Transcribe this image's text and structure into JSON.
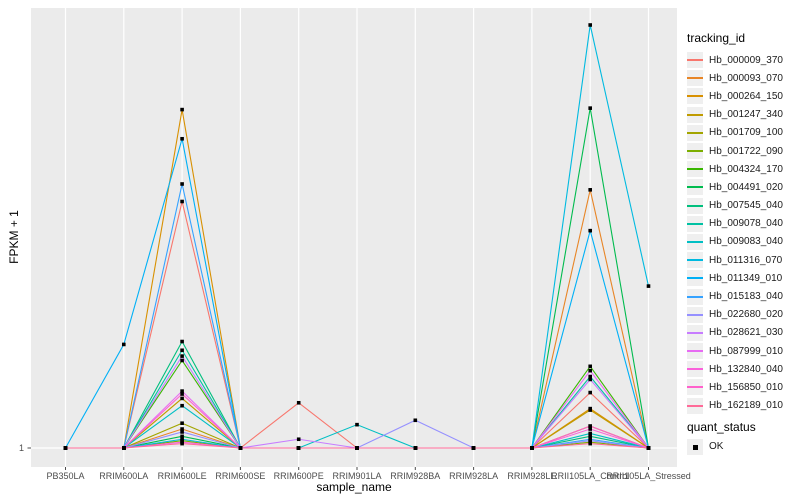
{
  "style": {
    "panel_background": "#EBEBEB",
    "gridline_color": "#FFFFFF",
    "axis_text_color": "#4D4D4D",
    "point_color": "#000000",
    "legend_key_background": "#EFEFEF"
  },
  "chart_data": {
    "type": "line",
    "title": "",
    "xlabel": "sample_name",
    "ylabel": "FPKM + 1",
    "y_tick_labels": [
      "1"
    ],
    "ylim": [
      1,
      30.5
    ],
    "grid": "vertical-white-on-gray",
    "legend": {
      "position": "right",
      "tracking_title": "tracking_id",
      "quant_title": "quant_status",
      "quant_value": "OK",
      "point_shape": "filled-square"
    },
    "x_categories": [
      "PB350LA",
      "RRIM600LA",
      "RRIM600LE",
      "RRIM600SE",
      "RRIM600PE",
      "RRIM901LA",
      "RRIM928BA",
      "RRIM928LA",
      "RRIM928LE",
      "RRII105LA_Control",
      "RRII105LA_Stressed"
    ],
    "series": [
      {
        "name": "Hb_000009_370",
        "color": "#F8766D",
        "values": [
          1,
          1,
          17.9,
          1,
          4.1,
          1,
          1,
          1,
          1,
          4.8,
          1
        ]
      },
      {
        "name": "Hb_000093_070",
        "color": "#E88526",
        "values": [
          1,
          1,
          2.3,
          1,
          1,
          1,
          1,
          1,
          1,
          18.7,
          1
        ]
      },
      {
        "name": "Hb_000264_150",
        "color": "#D89000",
        "values": [
          1,
          1,
          24.2,
          1,
          1,
          1,
          1,
          1,
          1,
          3.7,
          1
        ]
      },
      {
        "name": "Hb_001247_340",
        "color": "#C09B00",
        "values": [
          1,
          1,
          4.4,
          1,
          1,
          1,
          1,
          1,
          1,
          3.6,
          1
        ]
      },
      {
        "name": "Hb_001709_100",
        "color": "#A3A500",
        "values": [
          1,
          1,
          2.7,
          1,
          1,
          1,
          1,
          1,
          1,
          2.5,
          1
        ]
      },
      {
        "name": "Hb_001722_090",
        "color": "#7CAE00",
        "values": [
          1,
          1,
          1.5,
          1,
          1,
          1,
          1,
          1,
          1,
          1.4,
          1
        ]
      },
      {
        "name": "Hb_004324_170",
        "color": "#39B600",
        "values": [
          1,
          1,
          7.0,
          1,
          1,
          1,
          1,
          1,
          1,
          6.6,
          1
        ]
      },
      {
        "name": "Hb_004491_020",
        "color": "#00BB4E",
        "values": [
          1,
          1,
          1.8,
          1,
          1,
          1,
          1,
          1,
          1,
          24.3,
          1
        ]
      },
      {
        "name": "Hb_007545_040",
        "color": "#00BF7D",
        "values": [
          1,
          1,
          8.3,
          1,
          1,
          1,
          1,
          1,
          1,
          1.8,
          1
        ]
      },
      {
        "name": "Hb_009078_040",
        "color": "#00C1A3",
        "values": [
          1,
          1,
          7.7,
          1,
          1,
          1,
          1,
          1,
          1,
          5.9,
          1
        ]
      },
      {
        "name": "Hb_009083_040",
        "color": "#00BFC4",
        "values": [
          1,
          1,
          3.9,
          1,
          1,
          2.6,
          1,
          1,
          1,
          2.0,
          1
        ]
      },
      {
        "name": "Hb_011316_070",
        "color": "#00BAE0",
        "values": [
          1,
          1,
          1.6,
          1,
          1,
          1,
          1,
          1,
          1,
          30,
          12.1
        ]
      },
      {
        "name": "Hb_011349_010",
        "color": "#00B0F6",
        "values": [
          1,
          8.1,
          22.2,
          1,
          1,
          1,
          1,
          1,
          1,
          15.9,
          1
        ]
      },
      {
        "name": "Hb_015183_040",
        "color": "#35A2FF",
        "values": [
          1,
          1,
          19.1,
          1,
          1,
          1,
          1,
          1,
          1,
          1.6,
          1
        ]
      },
      {
        "name": "Hb_022680_020",
        "color": "#9590FF",
        "values": [
          1,
          1,
          2.1,
          1,
          1,
          1,
          2.9,
          1,
          1,
          1.5,
          1
        ]
      },
      {
        "name": "Hb_028621_030",
        "color": "#C77CFF",
        "values": [
          1,
          1,
          7.3,
          1,
          1.6,
          1,
          1,
          1,
          1,
          5.7,
          1
        ]
      },
      {
        "name": "Hb_087999_010",
        "color": "#E76BF3",
        "values": [
          1,
          1,
          4.9,
          1,
          1,
          1,
          1,
          1,
          1,
          6.3,
          1
        ]
      },
      {
        "name": "Hb_132840_040",
        "color": "#FA62DB",
        "values": [
          1,
          1,
          1.4,
          1,
          1,
          1,
          1,
          1,
          1,
          2.3,
          1
        ]
      },
      {
        "name": "Hb_156850_010",
        "color": "#FF61CC",
        "values": [
          1,
          1,
          4.7,
          1,
          1,
          1,
          1,
          1,
          1,
          2.5,
          1
        ]
      },
      {
        "name": "Hb_162189_010",
        "color": "#FF6A98",
        "values": [
          1,
          1,
          1.3,
          1,
          1,
          1,
          1,
          1,
          1,
          1.3,
          1
        ]
      }
    ]
  }
}
